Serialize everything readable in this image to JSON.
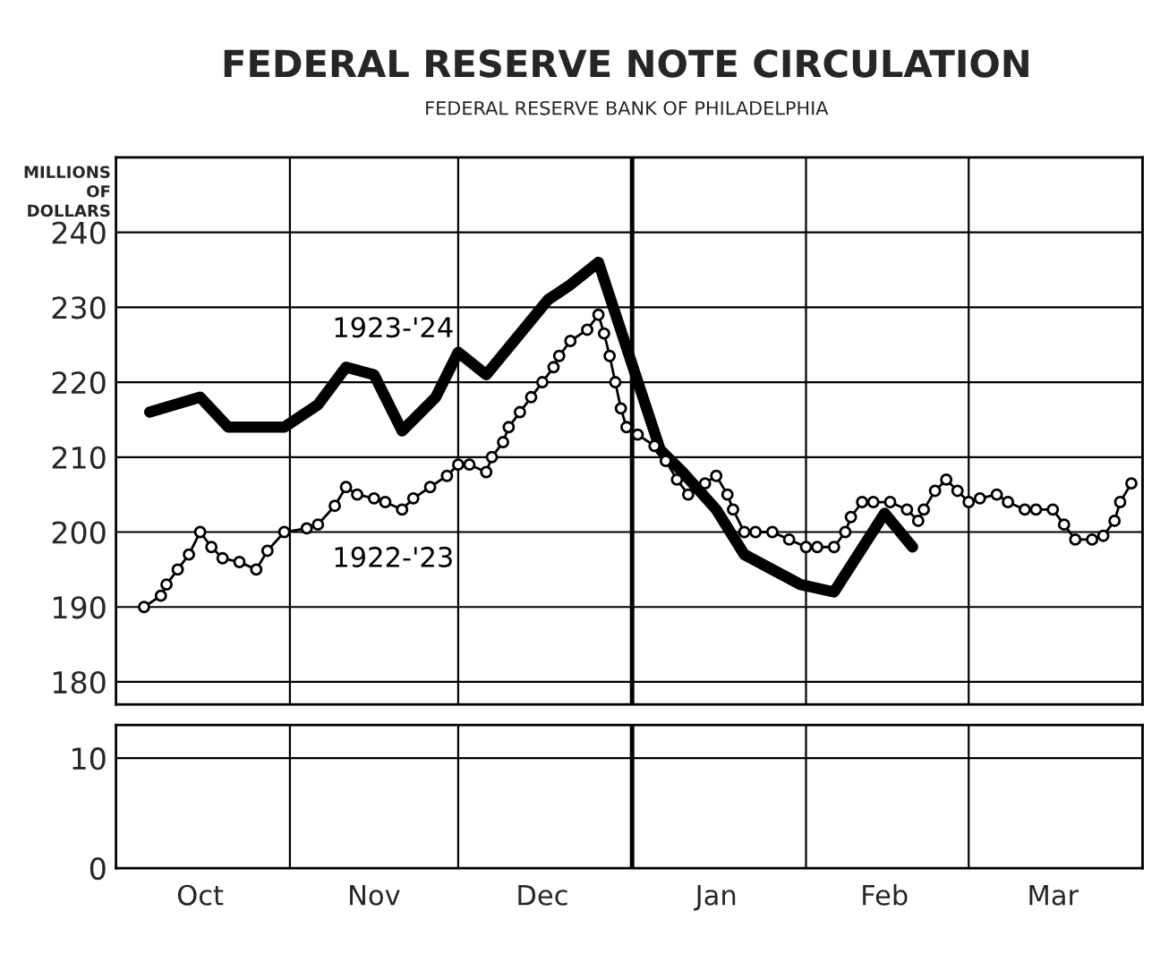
{
  "chart_data": [
    {
      "type": "line",
      "title": "FEDERAL RESERVE NOTE CIRCULATION",
      "subtitle": "FEDERAL RESERVE BANK OF PHILADELPHIA",
      "ylabel": "MILLIONS OF DOLLARS",
      "xlim": [
        "1923-10-01",
        "1924-04-01"
      ],
      "xticks": [
        {
          "value": "1923-10-01",
          "label": null
        },
        {
          "value": "1923-11-01",
          "label": null
        },
        {
          "value": "1923-12-01",
          "label": null
        },
        {
          "value": "1924-01-01",
          "label": null
        },
        {
          "value": "1924-02-01",
          "label": null
        },
        {
          "value": "1924-03-01",
          "label": null
        },
        {
          "value": "1924-04-01",
          "label": null
        }
      ],
      "ylim": [
        177,
        250
      ],
      "yticks": [
        180,
        190,
        200,
        210,
        220,
        230,
        240
      ],
      "grid": true,
      "tick_labels": "y",
      "ref_lines": [
        {
          "axis": "x",
          "value": "1924-01-01",
          "color": "#000000"
        }
      ],
      "series": [
        {
          "name": "1923-'24",
          "color": "#000000",
          "marker": "none",
          "x": [
            "1923-10-07",
            "1923-10-16",
            "1923-10-21",
            "1923-10-31",
            "1923-11-06",
            "1923-11-11",
            "1923-11-16",
            "1923-11-21",
            "1923-11-27",
            "1923-12-01",
            "1923-12-06",
            "1923-12-17",
            "1923-12-21",
            "1923-12-26",
            "1924-01-06",
            "1924-01-10",
            "1924-01-16",
            "1924-01-21",
            "1924-01-31",
            "1924-02-06",
            "1924-02-15",
            "1924-02-20"
          ],
          "values": [
            216,
            218,
            214,
            214,
            217,
            222,
            221,
            213.5,
            218,
            224,
            221,
            231,
            233,
            236,
            211,
            208,
            203,
            197,
            193,
            192,
            202.5,
            198
          ]
        },
        {
          "name": "1922-'23",
          "color": "#000000",
          "marker": "circle",
          "x": [
            "1923-10-06",
            "1923-10-09",
            "1923-10-10",
            "1923-10-12",
            "1923-10-14",
            "1923-10-16",
            "1923-10-18",
            "1923-10-20",
            "1923-10-23",
            "1923-10-26",
            "1923-10-28",
            "1923-10-31",
            "1923-11-04",
            "1923-11-06",
            "1923-11-09",
            "1923-11-11",
            "1923-11-13",
            "1923-11-16",
            "1923-11-18",
            "1923-11-21",
            "1923-11-23",
            "1923-11-26",
            "1923-11-29",
            "1923-12-01",
            "1923-12-03",
            "1923-12-06",
            "1923-12-07",
            "1923-12-09",
            "1923-12-10",
            "1923-12-12",
            "1923-12-14",
            "1923-12-16",
            "1923-12-18",
            "1923-12-19",
            "1923-12-21",
            "1923-12-24",
            "1923-12-26",
            "1923-12-27",
            "1923-12-28",
            "1923-12-29",
            "1923-12-30",
            "1923-12-31",
            "1924-01-02",
            "1924-01-05",
            "1924-01-07",
            "1924-01-09",
            "1924-01-11",
            "1924-01-14",
            "1924-01-16",
            "1924-01-18",
            "1924-01-19",
            "1924-01-21",
            "1924-01-23",
            "1924-01-26",
            "1924-01-29",
            "1924-02-01",
            "1924-02-03",
            "1924-02-06",
            "1924-02-08",
            "1924-02-09",
            "1924-02-11",
            "1924-02-13",
            "1924-02-16",
            "1924-02-19",
            "1924-02-21",
            "1924-02-22",
            "1924-02-24",
            "1924-02-26",
            "1924-02-28",
            "1924-03-01",
            "1924-03-03",
            "1924-03-06",
            "1924-03-08",
            "1924-03-11",
            "1924-03-13",
            "1924-03-16",
            "1924-03-18",
            "1924-03-20",
            "1924-03-23",
            "1924-03-25",
            "1924-03-27",
            "1924-03-28",
            "1924-03-30"
          ],
          "values": [
            190,
            191.5,
            193,
            195,
            197,
            200,
            198,
            196.5,
            196,
            195,
            197.5,
            200,
            200.5,
            201,
            203.5,
            206,
            205,
            204.5,
            204,
            203,
            204.5,
            206,
            207.5,
            209,
            209,
            208,
            210,
            212,
            214,
            216,
            218,
            220,
            222,
            223.5,
            225.5,
            227,
            229,
            226.5,
            223.5,
            220,
            216.5,
            214,
            213,
            211.5,
            209.5,
            207,
            205,
            206.5,
            207.5,
            205,
            203,
            200,
            200,
            200,
            199,
            198,
            198,
            198,
            200,
            202,
            204,
            204,
            204,
            203,
            201.5,
            203,
            205.5,
            207,
            205.5,
            204,
            204.5,
            205,
            204,
            203,
            203,
            203,
            201,
            199,
            199,
            199.5,
            201.5,
            204,
            206.5
          ]
        }
      ]
    },
    {
      "type": "line",
      "xlim": [
        "1923-10-01",
        "1924-04-01"
      ],
      "xticks": [
        {
          "value": "1923-10-01",
          "label": null
        },
        {
          "value": "1923-10-16",
          "label": "Oct"
        },
        {
          "value": "1923-11-01",
          "label": null
        },
        {
          "value": "1923-11-16",
          "label": "Nov"
        },
        {
          "value": "1923-12-01",
          "label": null
        },
        {
          "value": "1923-12-16",
          "label": "Dec"
        },
        {
          "value": "1924-01-01",
          "label": null
        },
        {
          "value": "1924-01-16",
          "label": "Jan"
        },
        {
          "value": "1924-02-01",
          "label": null
        },
        {
          "value": "1924-02-15",
          "label": "Feb"
        },
        {
          "value": "1924-03-01",
          "label": null
        },
        {
          "value": "1924-03-16",
          "label": "Mar"
        },
        {
          "value": "1924-04-01",
          "label": null
        }
      ],
      "ylim": [
        0,
        13
      ],
      "yticks": [
        0,
        10
      ],
      "grid": true,
      "ref_lines": [
        {
          "axis": "x",
          "value": "1924-01-01",
          "color": "#000000"
        }
      ]
    }
  ]
}
